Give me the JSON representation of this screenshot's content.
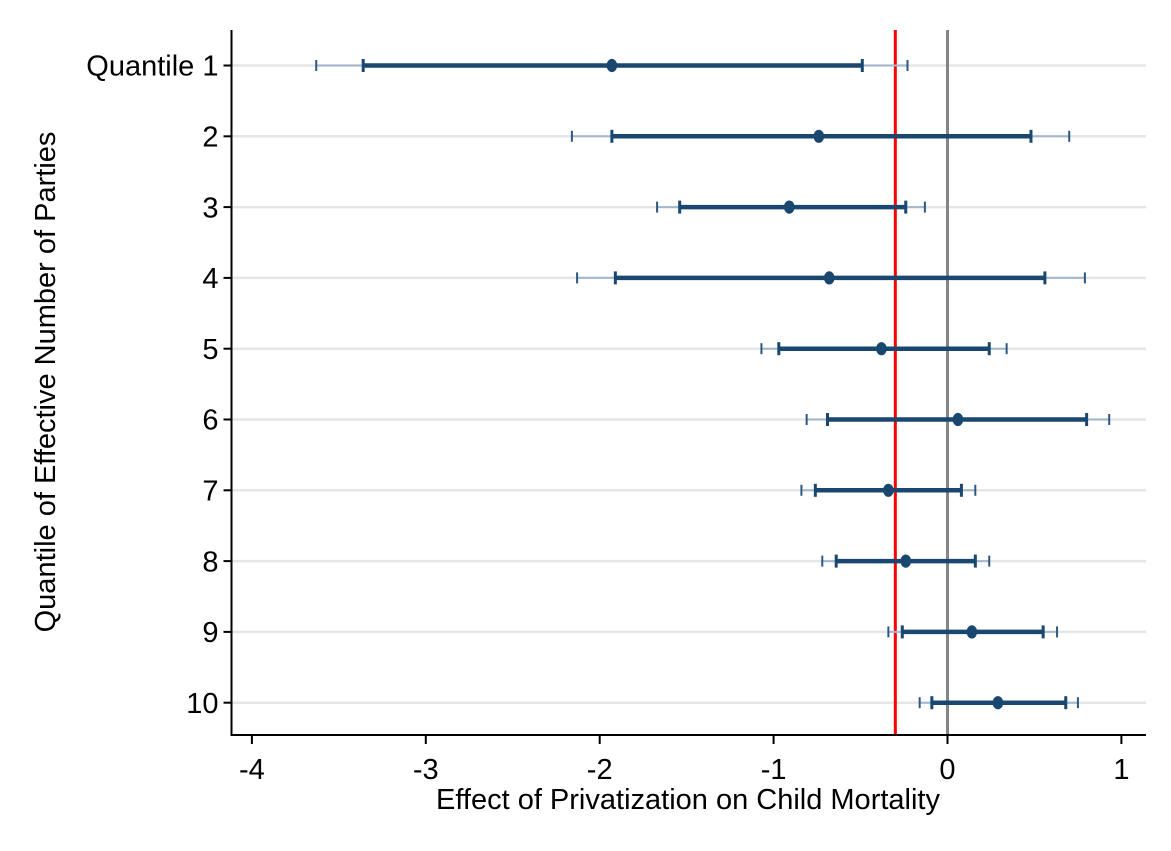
{
  "chart_data": {
    "type": "scatter",
    "subtype": "coefficient-plot-with-error-bars",
    "title": "",
    "xlabel": "Effect of Privatization on Child Mortality",
    "ylabel": "Quantile of Effective Number of Parties",
    "xlim": [
      -4.12,
      1.14
    ],
    "xticks": [
      -4,
      -3,
      -2,
      -1,
      0,
      1
    ],
    "xtick_labels": [
      "-4",
      "-3",
      "-2",
      "-1",
      "0",
      "1"
    ],
    "grid": "horizontal-light-gray",
    "legend": "none",
    "categories": [
      "Quantile 1",
      "2",
      "3",
      "4",
      "5",
      "6",
      "7",
      "8",
      "9",
      "10"
    ],
    "points": [
      {
        "label": "Quantile 1",
        "estimate": -1.93,
        "ci_inner": [
          -3.36,
          -0.49
        ],
        "ci_outer": [
          -3.63,
          -0.23
        ]
      },
      {
        "label": "2",
        "estimate": -0.74,
        "ci_inner": [
          -1.93,
          0.48
        ],
        "ci_outer": [
          -2.16,
          0.7
        ]
      },
      {
        "label": "3",
        "estimate": -0.91,
        "ci_inner": [
          -1.54,
          -0.24
        ],
        "ci_outer": [
          -1.67,
          -0.13
        ]
      },
      {
        "label": "4",
        "estimate": -0.68,
        "ci_inner": [
          -1.91,
          0.56
        ],
        "ci_outer": [
          -2.13,
          0.79
        ]
      },
      {
        "label": "5",
        "estimate": -0.38,
        "ci_inner": [
          -0.97,
          0.24
        ],
        "ci_outer": [
          -1.07,
          0.34
        ]
      },
      {
        "label": "6",
        "estimate": 0.06,
        "ci_inner": [
          -0.69,
          0.8
        ],
        "ci_outer": [
          -0.81,
          0.93
        ]
      },
      {
        "label": "7",
        "estimate": -0.34,
        "ci_inner": [
          -0.76,
          0.08
        ],
        "ci_outer": [
          -0.84,
          0.16
        ]
      },
      {
        "label": "8",
        "estimate": -0.24,
        "ci_inner": [
          -0.64,
          0.16
        ],
        "ci_outer": [
          -0.72,
          0.24
        ]
      },
      {
        "label": "9",
        "estimate": 0.14,
        "ci_inner": [
          -0.26,
          0.55
        ],
        "ci_outer": [
          -0.34,
          0.63
        ]
      },
      {
        "label": "10",
        "estimate": 0.29,
        "ci_inner": [
          -0.09,
          0.68
        ],
        "ci_outer": [
          -0.16,
          0.75
        ]
      }
    ],
    "reference_lines": [
      {
        "axis": "x",
        "value": -0.3,
        "color": "#ff0000",
        "name": "red-reference-line"
      },
      {
        "axis": "x",
        "value": 0,
        "color": "#858585",
        "name": "zero-line"
      }
    ]
  },
  "style": {
    "marker_color": "#1a476f",
    "ci_inner_color": "#1a476f",
    "ci_outer_line_color": "#a3b8cc",
    "ci_outer_cap_color": "#2d5680",
    "grid_color": "#e6e6e6",
    "axis_color": "#000000",
    "text_color": "#000000",
    "background": "#ffffff"
  }
}
